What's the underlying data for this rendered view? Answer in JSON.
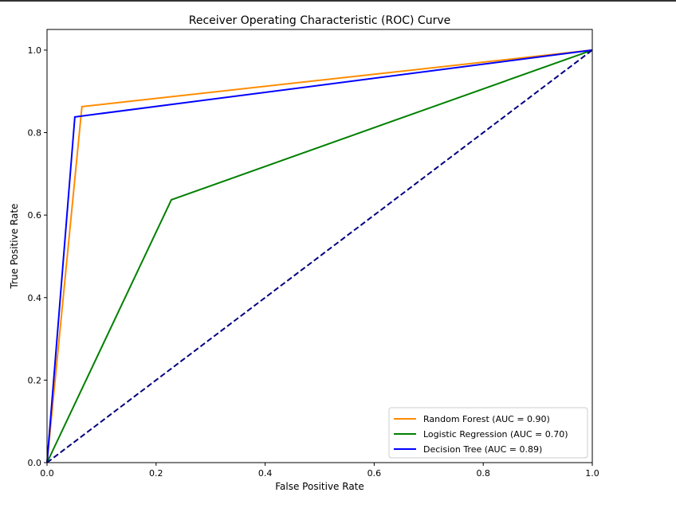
{
  "chart_data": {
    "type": "line",
    "title": "Receiver Operating Characteristic (ROC) Curve",
    "xlabel": "False Positive Rate",
    "ylabel": "True Positive Rate",
    "xlim": [
      0,
      1
    ],
    "ylim": [
      0,
      1.05
    ],
    "xticks": [
      "0.0",
      "0.2",
      "0.4",
      "0.6",
      "0.8",
      "1.0"
    ],
    "yticks": [
      "0.0",
      "0.2",
      "0.4",
      "0.6",
      "0.8",
      "1.0"
    ],
    "grid": false,
    "legend_position": "lower-right",
    "series": [
      {
        "name": "Random Forest (AUC = 0.90)",
        "color": "#ff8c00",
        "style": "solid",
        "x": [
          0,
          0.064,
          1
        ],
        "y": [
          0,
          0.863,
          1
        ]
      },
      {
        "name": "Logistic Regression (AUC = 0.70)",
        "color": "#008000",
        "style": "solid",
        "x": [
          0,
          0.228,
          1
        ],
        "y": [
          0,
          0.637,
          1
        ]
      },
      {
        "name": "Decision Tree (AUC = 0.89)",
        "color": "#0000ff",
        "style": "solid",
        "x": [
          0,
          0.051,
          1
        ],
        "y": [
          0,
          0.838,
          1
        ]
      }
    ],
    "reference_line": {
      "color": "#000080",
      "style": "dashed",
      "x": [
        0,
        1
      ],
      "y": [
        0,
        1
      ]
    }
  }
}
